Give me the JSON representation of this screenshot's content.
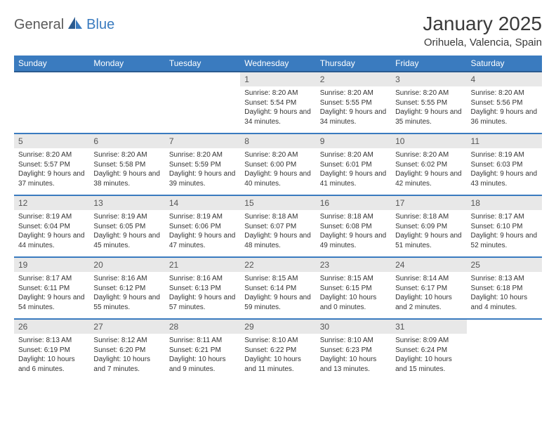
{
  "logo": {
    "text1": "General",
    "text2": "Blue"
  },
  "title": "January 2025",
  "location": "Orihuela, Valencia, Spain",
  "colors": {
    "header_bg": "#3a7bbf",
    "header_border": "#2a5a8f",
    "row_border": "#3a7bbf",
    "daynum_bg": "#e8e8e8",
    "text": "#333333",
    "logo_gray": "#5a5a5a",
    "logo_blue": "#3a7bbf"
  },
  "weekdays": [
    "Sunday",
    "Monday",
    "Tuesday",
    "Wednesday",
    "Thursday",
    "Friday",
    "Saturday"
  ],
  "weeks": [
    [
      null,
      null,
      null,
      {
        "n": "1",
        "sr": "8:20 AM",
        "ss": "5:54 PM",
        "dl": "9 hours and 34 minutes."
      },
      {
        "n": "2",
        "sr": "8:20 AM",
        "ss": "5:55 PM",
        "dl": "9 hours and 34 minutes."
      },
      {
        "n": "3",
        "sr": "8:20 AM",
        "ss": "5:55 PM",
        "dl": "9 hours and 35 minutes."
      },
      {
        "n": "4",
        "sr": "8:20 AM",
        "ss": "5:56 PM",
        "dl": "9 hours and 36 minutes."
      }
    ],
    [
      {
        "n": "5",
        "sr": "8:20 AM",
        "ss": "5:57 PM",
        "dl": "9 hours and 37 minutes."
      },
      {
        "n": "6",
        "sr": "8:20 AM",
        "ss": "5:58 PM",
        "dl": "9 hours and 38 minutes."
      },
      {
        "n": "7",
        "sr": "8:20 AM",
        "ss": "5:59 PM",
        "dl": "9 hours and 39 minutes."
      },
      {
        "n": "8",
        "sr": "8:20 AM",
        "ss": "6:00 PM",
        "dl": "9 hours and 40 minutes."
      },
      {
        "n": "9",
        "sr": "8:20 AM",
        "ss": "6:01 PM",
        "dl": "9 hours and 41 minutes."
      },
      {
        "n": "10",
        "sr": "8:20 AM",
        "ss": "6:02 PM",
        "dl": "9 hours and 42 minutes."
      },
      {
        "n": "11",
        "sr": "8:19 AM",
        "ss": "6:03 PM",
        "dl": "9 hours and 43 minutes."
      }
    ],
    [
      {
        "n": "12",
        "sr": "8:19 AM",
        "ss": "6:04 PM",
        "dl": "9 hours and 44 minutes."
      },
      {
        "n": "13",
        "sr": "8:19 AM",
        "ss": "6:05 PM",
        "dl": "9 hours and 45 minutes."
      },
      {
        "n": "14",
        "sr": "8:19 AM",
        "ss": "6:06 PM",
        "dl": "9 hours and 47 minutes."
      },
      {
        "n": "15",
        "sr": "8:18 AM",
        "ss": "6:07 PM",
        "dl": "9 hours and 48 minutes."
      },
      {
        "n": "16",
        "sr": "8:18 AM",
        "ss": "6:08 PM",
        "dl": "9 hours and 49 minutes."
      },
      {
        "n": "17",
        "sr": "8:18 AM",
        "ss": "6:09 PM",
        "dl": "9 hours and 51 minutes."
      },
      {
        "n": "18",
        "sr": "8:17 AM",
        "ss": "6:10 PM",
        "dl": "9 hours and 52 minutes."
      }
    ],
    [
      {
        "n": "19",
        "sr": "8:17 AM",
        "ss": "6:11 PM",
        "dl": "9 hours and 54 minutes."
      },
      {
        "n": "20",
        "sr": "8:16 AM",
        "ss": "6:12 PM",
        "dl": "9 hours and 55 minutes."
      },
      {
        "n": "21",
        "sr": "8:16 AM",
        "ss": "6:13 PM",
        "dl": "9 hours and 57 minutes."
      },
      {
        "n": "22",
        "sr": "8:15 AM",
        "ss": "6:14 PM",
        "dl": "9 hours and 59 minutes."
      },
      {
        "n": "23",
        "sr": "8:15 AM",
        "ss": "6:15 PM",
        "dl": "10 hours and 0 minutes."
      },
      {
        "n": "24",
        "sr": "8:14 AM",
        "ss": "6:17 PM",
        "dl": "10 hours and 2 minutes."
      },
      {
        "n": "25",
        "sr": "8:13 AM",
        "ss": "6:18 PM",
        "dl": "10 hours and 4 minutes."
      }
    ],
    [
      {
        "n": "26",
        "sr": "8:13 AM",
        "ss": "6:19 PM",
        "dl": "10 hours and 6 minutes."
      },
      {
        "n": "27",
        "sr": "8:12 AM",
        "ss": "6:20 PM",
        "dl": "10 hours and 7 minutes."
      },
      {
        "n": "28",
        "sr": "8:11 AM",
        "ss": "6:21 PM",
        "dl": "10 hours and 9 minutes."
      },
      {
        "n": "29",
        "sr": "8:10 AM",
        "ss": "6:22 PM",
        "dl": "10 hours and 11 minutes."
      },
      {
        "n": "30",
        "sr": "8:10 AM",
        "ss": "6:23 PM",
        "dl": "10 hours and 13 minutes."
      },
      {
        "n": "31",
        "sr": "8:09 AM",
        "ss": "6:24 PM",
        "dl": "10 hours and 15 minutes."
      },
      null
    ]
  ],
  "labels": {
    "sunrise": "Sunrise:",
    "sunset": "Sunset:",
    "daylight": "Daylight:"
  }
}
